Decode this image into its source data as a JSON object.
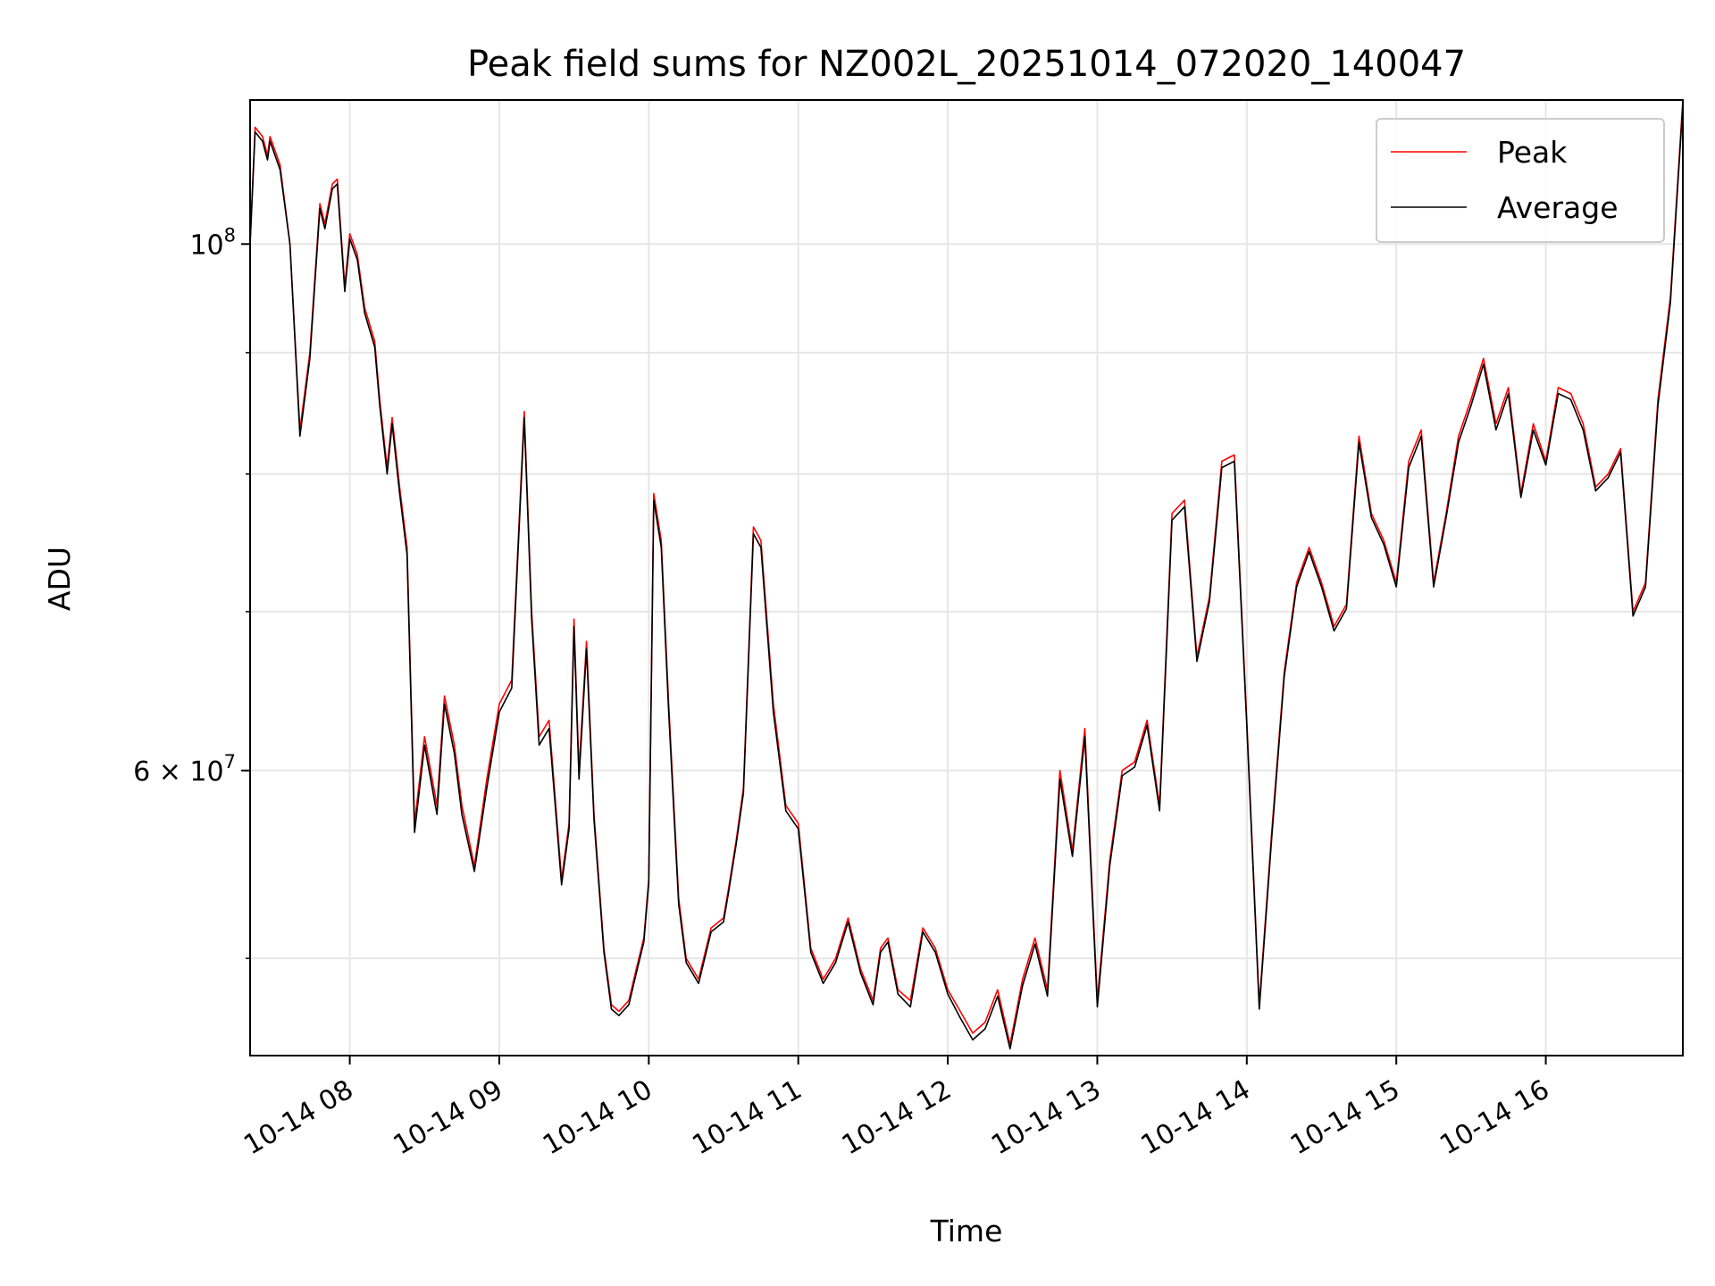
{
  "chart_data": {
    "type": "line",
    "title": "Peak field sums for NZ002L_20251014_072020_140047",
    "xlabel": "Time",
    "ylabel": "ADU",
    "y_scale": "log",
    "xlim": [
      "10-14 07:20",
      "10-14 16:55"
    ],
    "ylim": [
      45500000,
      115000000
    ],
    "grid": true,
    "legend_position": "upper right",
    "x_ticks": [
      "10-14 08",
      "10-14 09",
      "10-14 10",
      "10-14 11",
      "10-14 12",
      "10-14 13",
      "10-14 14",
      "10-14 15",
      "10-14 16"
    ],
    "y_major_ticks": [
      {
        "value": 100000000,
        "label_base": "10",
        "label_exp": "8"
      },
      {
        "value": 60000000,
        "label_base": "6 × 10",
        "label_exp": "7"
      }
    ],
    "y_minor_ticks": [
      50000000,
      70000000,
      80000000,
      90000000
    ],
    "series": [
      {
        "name": "Peak",
        "color": "#ff0000"
      },
      {
        "name": "Average",
        "color": "#000000"
      }
    ],
    "x": [
      "07:20",
      "07:22",
      "07:25",
      "07:27",
      "07:28",
      "07:32",
      "07:36",
      "07:40",
      "07:44",
      "07:48",
      "07:50",
      "07:53",
      "07:55",
      "07:58",
      "08:00",
      "08:03",
      "08:06",
      "08:10",
      "08:12",
      "08:15",
      "08:17",
      "08:20",
      "08:23",
      "08:26",
      "08:30",
      "08:35",
      "08:38",
      "08:42",
      "08:45",
      "08:50",
      "08:55",
      "09:00",
      "09:05",
      "09:10",
      "09:13",
      "09:16",
      "09:20",
      "09:25",
      "09:28",
      "09:30",
      "09:32",
      "09:35",
      "09:38",
      "09:42",
      "09:45",
      "09:48",
      "09:52",
      "09:55",
      "09:58",
      "10:00",
      "10:02",
      "10:05",
      "10:08",
      "10:12",
      "10:15",
      "10:20",
      "10:25",
      "10:30",
      "10:32",
      "10:35",
      "10:38",
      "10:42",
      "10:45",
      "10:50",
      "10:55",
      "11:00",
      "11:05",
      "11:10",
      "11:15",
      "11:20",
      "11:25",
      "11:30",
      "11:33",
      "11:36",
      "11:40",
      "11:45",
      "11:50",
      "11:55",
      "12:00",
      "12:05",
      "12:10",
      "12:15",
      "12:20",
      "12:25",
      "12:30",
      "12:35",
      "12:40",
      "12:45",
      "12:50",
      "12:55",
      "13:00",
      "13:05",
      "13:10",
      "13:15",
      "13:20",
      "13:25",
      "13:30",
      "13:35",
      "13:40",
      "13:45",
      "13:50",
      "13:55",
      "14:00",
      "14:05",
      "14:10",
      "14:15",
      "14:20",
      "14:25",
      "14:30",
      "14:35",
      "14:40",
      "14:45",
      "14:50",
      "14:55",
      "15:00",
      "15:05",
      "15:10",
      "15:15",
      "15:20",
      "15:25",
      "15:30",
      "15:35",
      "15:40",
      "15:45",
      "15:50",
      "15:55",
      "16:00",
      "16:05",
      "16:10",
      "16:15",
      "16:20",
      "16:25",
      "16:30",
      "16:35",
      "16:40",
      "16:45",
      "16:50",
      "16:55"
    ],
    "peak": [
      100000000,
      112000000,
      111000000,
      109000000,
      111000000,
      108000000,
      100000000,
      83500000,
      90000000,
      104000000,
      102000000,
      106000000,
      106500000,
      96000000,
      101000000,
      99000000,
      94000000,
      91000000,
      86000000,
      80500000,
      84500000,
      79000000,
      74500000,
      57000000,
      62000000,
      58000000,
      64500000,
      61500000,
      58000000,
      54700000,
      59500000,
      64000000,
      65500000,
      85000000,
      70000000,
      62000000,
      63000000,
      54000000,
      57000000,
      69500000,
      60000000,
      68000000,
      57500000,
      50500000,
      47800000,
      47500000,
      48000000,
      49500000,
      51000000,
      54000000,
      78500000,
      75000000,
      64000000,
      53000000,
      50000000,
      49000000,
      51500000,
      52000000,
      53500000,
      56000000,
      59000000,
      76000000,
      75000000,
      64000000,
      58000000,
      57000000,
      50500000,
      49000000,
      50000000,
      52000000,
      49500000,
      48000000,
      50500000,
      51000000,
      48500000,
      48000000,
      51500000,
      50500000,
      48500000,
      47500000,
      46500000,
      47000000,
      48500000,
      46000000,
      49000000,
      51000000,
      48500000,
      60000000,
      55500000,
      62500000,
      48000000,
      55000000,
      60000000,
      60500000,
      63000000,
      58000000,
      77000000,
      78000000,
      67000000,
      71000000,
      81000000,
      81500000,
      63000000,
      47800000,
      56500000,
      66000000,
      72000000,
      74500000,
      72000000,
      69000000,
      70500000,
      83000000,
      77000000,
      75000000,
      72000000,
      81000000,
      83500000,
      72000000,
      77000000,
      83000000,
      86000000,
      89500000,
      84000000,
      87000000,
      78500000,
      84000000,
      81000000,
      87000000,
      86500000,
      84000000,
      79000000,
      80000000,
      82000000,
      70000000,
      72000000,
      86000000,
      95000000,
      115000000
    ],
    "average": [
      100000000,
      111500000,
      110500000,
      108500000,
      110500000,
      107500000,
      100000000,
      83000000,
      89500000,
      103500000,
      101500000,
      105500000,
      106000000,
      95500000,
      100500000,
      98500000,
      93500000,
      90500000,
      85500000,
      80000000,
      84000000,
      78500000,
      74000000,
      56500000,
      61500000,
      57500000,
      64000000,
      61000000,
      57500000,
      54400000,
      59000000,
      63500000,
      65000000,
      84500000,
      69500000,
      61500000,
      62500000,
      53700000,
      56700000,
      69000000,
      59500000,
      67500000,
      57200000,
      50300000,
      47600000,
      47300000,
      47800000,
      49300000,
      50800000,
      53800000,
      78000000,
      74500000,
      63500000,
      52700000,
      49800000,
      48800000,
      51300000,
      51800000,
      53300000,
      55800000,
      58700000,
      75500000,
      74500000,
      63500000,
      57700000,
      56700000,
      50300000,
      48800000,
      49800000,
      51800000,
      49300000,
      47800000,
      50300000,
      50800000,
      48300000,
      47700000,
      51300000,
      50300000,
      48300000,
      47200000,
      46200000,
      46700000,
      48200000,
      45800000,
      48700000,
      50700000,
      48200000,
      59500000,
      55200000,
      62000000,
      47700000,
      54700000,
      59700000,
      60200000,
      62700000,
      57700000,
      76500000,
      77500000,
      66700000,
      70700000,
      80500000,
      81000000,
      62700000,
      47600000,
      56200000,
      65700000,
      71700000,
      74200000,
      71700000,
      68700000,
      70200000,
      82500000,
      76700000,
      74700000,
      71700000,
      80500000,
      83000000,
      71700000,
      76700000,
      82500000,
      85500000,
      89000000,
      83500000,
      86500000,
      78200000,
      83500000,
      80700000,
      86500000,
      86000000,
      83500000,
      78700000,
      79700000,
      81700000,
      69700000,
      71700000,
      85500000,
      94500000,
      114500000
    ]
  }
}
